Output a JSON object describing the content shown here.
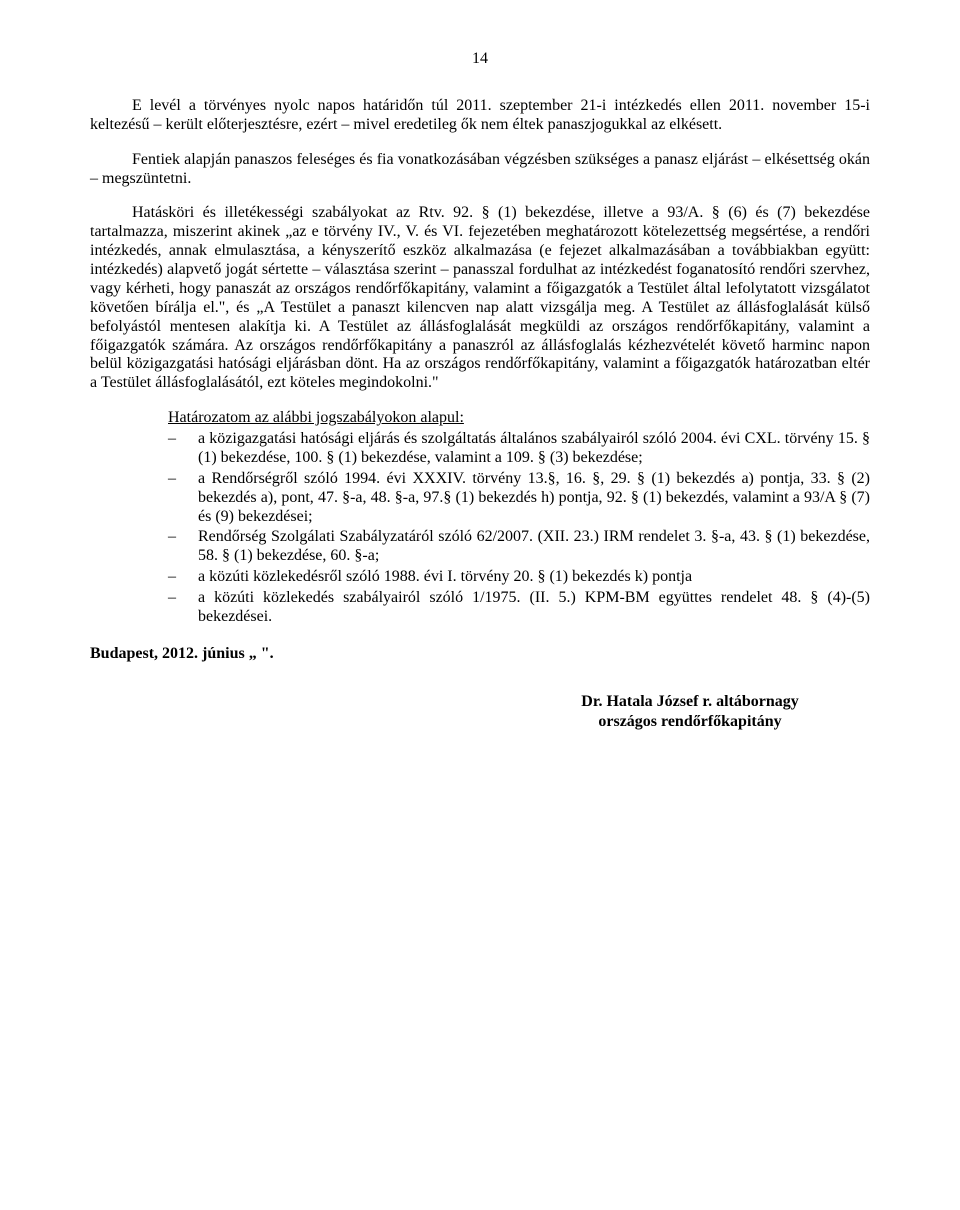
{
  "page_number": "14",
  "paragraphs": {
    "p1": "E levél a törvényes nyolc napos határidőn túl 2011. szeptember 21-i intézkedés ellen 2011. november 15-i keltezésű – került előterjesztésre, ezért – mivel eredetileg ők nem éltek panaszjogukkal az elkésett.",
    "p2": "Fentiek alapján panaszos feleséges és fia vonatkozásában végzésben szükséges a panasz eljárást – elkésettség okán – megszüntetni.",
    "p3": "Hatásköri és illetékességi szabályokat az Rtv. 92. § (1) bekezdése, illetve a 93/A. § (6) és (7) bekezdése tartalmazza, miszerint akinek „az e törvény IV., V. és VI. fejezetében meghatározott kötelezettség megsértése, a rendőri intézkedés, annak elmulasztása, a kényszerítő eszköz alkalmazása (e fejezet alkalmazásában a továbbiakban együtt: intézkedés) alapvető jogát sértette – választása szerint – panasszal fordulhat az intézkedést foganatosító rendőri szervhez, vagy kérheti, hogy panaszát az országos rendőrfőkapitány, valamint a főigazgatók a Testület által lefolytatott vizsgálatot követően bírálja el.\", és „A Testület a panaszt kilencven nap alatt vizsgálja meg. A Testület az állásfoglalását külső befolyástól mentesen alakítja ki. A Testület az állásfoglalását megküldi az országos rendőrfőkapitány, valamint a főigazgatók számára. Az országos rendőrfőkapitány a panaszról az állásfoglalás kézhezvételét követő harminc napon belül közigazgatási hatósági eljárásban dönt. Ha az országos rendőrfőkapitány, valamint a főigazgatók határozatban eltér a Testület állásfoglalásától, ezt köteles megindokolni.\""
  },
  "list": {
    "heading": "Határozatom az alábbi jogszabályokon alapul:",
    "items": [
      "a közigazgatási hatósági eljárás és szolgáltatás általános szabályairól szóló 2004. évi CXL. törvény 15. § (1) bekezdése, 100. § (1) bekezdése, valamint a 109. § (3) bekezdése;",
      "a Rendőrségről szóló 1994. évi XXXIV. törvény 13.§, 16. §, 29. § (1) bekezdés a) pontja, 33. § (2) bekezdés a), pont, 47. §-a, 48. §-a, 97.§ (1) bekezdés h) pontja, 92. § (1) bekezdés, valamint a 93/A § (7) és (9) bekezdései;",
      "Rendőrség Szolgálati Szabályzatáról szóló 62/2007. (XII. 23.) IRM rendelet 3. §-a, 43. § (1) bekezdése, 58. § (1) bekezdése, 60. §-a;",
      "a közúti közlekedésről szóló 1988. évi I. törvény 20. § (1) bekezdés k) pontja",
      "a közúti közlekedés szabályairól szóló 1/1975. (II. 5.) KPM-BM együttes rendelet 48. § (4)-(5) bekezdései."
    ]
  },
  "signoff": "Budapest, 2012. június „     \".",
  "signature": {
    "name": "Dr. Hatala József r. altábornagy",
    "title": "országos rendőrfőkapitány"
  }
}
